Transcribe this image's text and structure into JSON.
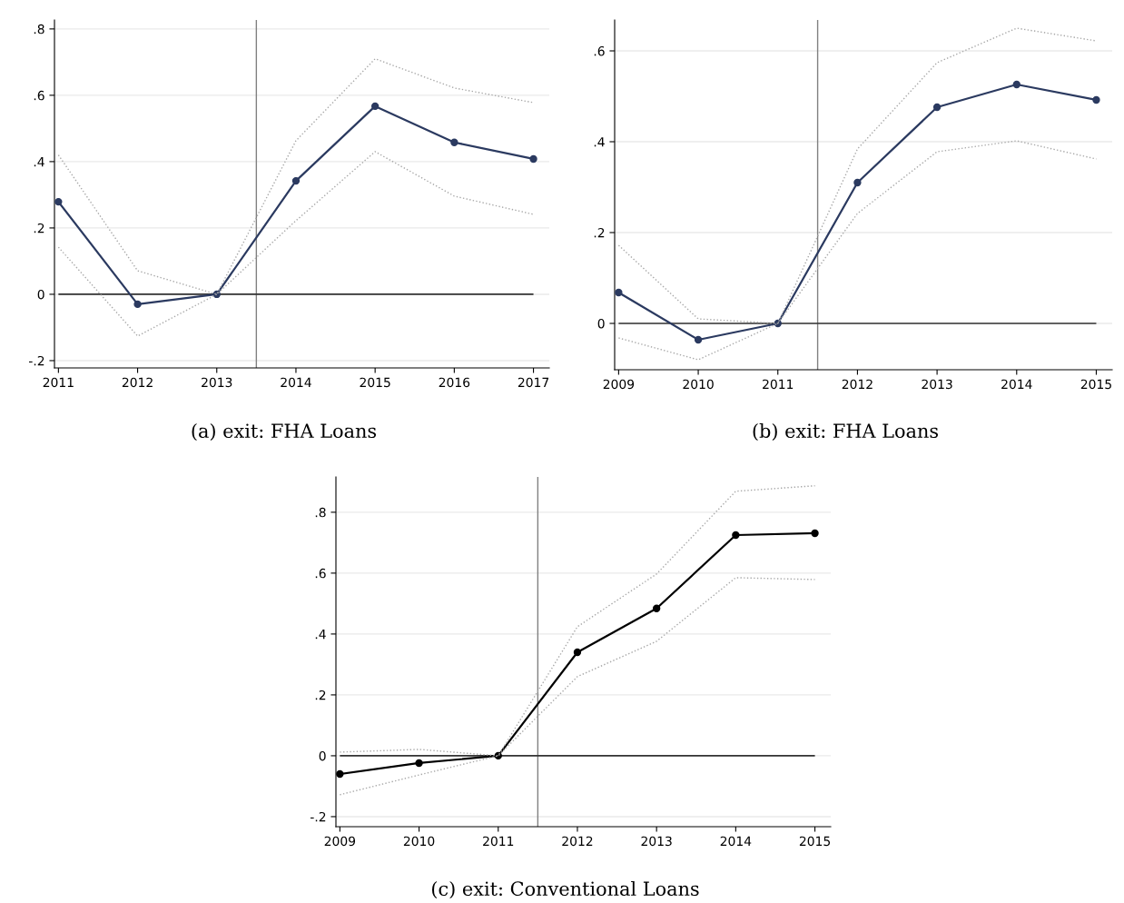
{
  "chart_data": [
    {
      "type": "line",
      "title": "(a) exit: FHA Loans",
      "x": [
        2011,
        2012,
        2013,
        2014,
        2015,
        2016,
        2017
      ],
      "xlim": [
        2010.95,
        2017.2
      ],
      "ylim": [
        -0.222,
        0.827
      ],
      "xticks": [
        2011,
        2012,
        2013,
        2014,
        2015,
        2016,
        2017
      ],
      "yticks": [
        {
          "value": -0.2,
          "label": "-.2"
        },
        0,
        {
          "value": 0.2,
          "label": ".2"
        },
        {
          "value": 0.4,
          "label": ".4"
        },
        {
          "value": 0.6,
          "label": ".6"
        },
        {
          "value": 0.8,
          "label": ".8"
        }
      ],
      "grid": "y",
      "series": [
        {
          "color": "#2b3a60",
          "marker": "circle",
          "line_style": "solid",
          "values": [
            0.279,
            -0.03,
            0,
            0.342,
            0.567,
            0.458,
            0.408
          ]
        },
        {
          "color": "#a8a8a8",
          "marker": "none",
          "line_style": "dotted",
          "values": [
            0.42,
            0.071,
            0,
            0.463,
            0.71,
            0.622,
            0.578
          ]
        },
        {
          "color": "#a8a8a8",
          "marker": "none",
          "line_style": "dotted",
          "values": [
            0.142,
            -0.126,
            0,
            0.222,
            0.43,
            0.296,
            0.241
          ]
        }
      ],
      "ref_lines": [
        {
          "axis": "x",
          "value": 2013.5,
          "color": "#808080"
        },
        {
          "axis": "y",
          "value": 0,
          "color": "#333333"
        }
      ]
    },
    {
      "type": "line",
      "title": "(b) exit: FHA Loans",
      "x": [
        2009,
        2010,
        2011,
        2012,
        2013,
        2014,
        2015
      ],
      "xlim": [
        2008.95,
        2015.2
      ],
      "ylim": [
        -0.102,
        0.668
      ],
      "xticks": [
        2009,
        2010,
        2011,
        2012,
        2013,
        2014,
        2015
      ],
      "yticks": [
        0,
        {
          "value": 0.2,
          "label": ".2"
        },
        {
          "value": 0.4,
          "label": ".4"
        },
        {
          "value": 0.6,
          "label": ".6"
        }
      ],
      "grid": "y",
      "series": [
        {
          "color": "#2b3a60",
          "marker": "circle",
          "line_style": "solid",
          "values": [
            0.068,
            -0.036,
            0,
            0.31,
            0.476,
            0.526,
            0.492
          ]
        },
        {
          "color": "#a8a8a8",
          "marker": "none",
          "line_style": "dotted",
          "values": [
            0.172,
            0.01,
            0,
            0.384,
            0.574,
            0.65,
            0.622
          ]
        },
        {
          "color": "#a8a8a8",
          "marker": "none",
          "line_style": "dotted",
          "values": [
            -0.032,
            -0.08,
            0,
            0.242,
            0.378,
            0.402,
            0.362
          ]
        }
      ],
      "ref_lines": [
        {
          "axis": "x",
          "value": 2011.5,
          "color": "#808080"
        },
        {
          "axis": "y",
          "value": 0,
          "color": "#333333"
        }
      ]
    },
    {
      "type": "line",
      "title": "(c) exit: Conventional Loans",
      "x": [
        2009,
        2010,
        2011,
        2012,
        2013,
        2014,
        2015
      ],
      "xlim": [
        2008.95,
        2015.2
      ],
      "ylim": [
        -0.233,
        0.916
      ],
      "xticks": [
        2009,
        2010,
        2011,
        2012,
        2013,
        2014,
        2015
      ],
      "yticks": [
        {
          "value": -0.2,
          "label": "-.2"
        },
        0,
        {
          "value": 0.2,
          "label": ".2"
        },
        {
          "value": 0.4,
          "label": ".4"
        },
        {
          "value": 0.6,
          "label": ".6"
        },
        {
          "value": 0.8,
          "label": ".8"
        }
      ],
      "grid": "y",
      "series": [
        {
          "color": "#000000",
          "marker": "circle",
          "line_style": "solid",
          "values": [
            -0.06,
            -0.024,
            0,
            0.34,
            0.484,
            0.725,
            0.731
          ]
        },
        {
          "color": "#a8a8a8",
          "marker": "none",
          "line_style": "dotted",
          "values": [
            0.012,
            0.021,
            0,
            0.424,
            0.597,
            0.869,
            0.887
          ]
        },
        {
          "color": "#a8a8a8",
          "marker": "none",
          "line_style": "dotted",
          "values": [
            -0.128,
            -0.063,
            0,
            0.26,
            0.376,
            0.585,
            0.579
          ]
        }
      ],
      "ref_lines": [
        {
          "axis": "x",
          "value": 2011.5,
          "color": "#808080"
        },
        {
          "axis": "y",
          "value": 0,
          "color": "#333333"
        }
      ]
    }
  ]
}
